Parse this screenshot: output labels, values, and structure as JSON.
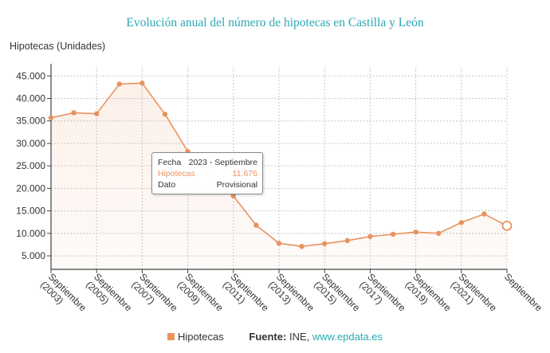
{
  "title": "Evolución anual del número de hipotecas en Castilla y León",
  "colors": {
    "series": "#e8935f",
    "title": "#2aa9b4",
    "source_link": "#2aa9b4"
  },
  "chart_data": {
    "type": "area",
    "ylabel": "Hipotecas (Unidades)",
    "ylim": [
      2000,
      47000
    ],
    "yticks": [
      5000,
      10000,
      15000,
      20000,
      25000,
      30000,
      35000,
      40000,
      45000
    ],
    "ytick_labels": [
      "5.000",
      "10.000",
      "15.000",
      "20.000",
      "25.000",
      "30.000",
      "35.000",
      "40.000",
      "45.000"
    ],
    "x_labels": [
      "Septiembre (2003)",
      "Septiembre (2005)",
      "Septiembre (2007)",
      "Septiembre (2009)",
      "Septiembre (2011)",
      "Septiembre (2013)",
      "Septiembre (2015)",
      "Septiembre (2017)",
      "Septiembre (2019)",
      "Septiembre (2021)",
      "Septiembre"
    ],
    "x_years": [
      2003,
      2004,
      2005,
      2006,
      2007,
      2008,
      2009,
      2010,
      2011,
      2012,
      2013,
      2014,
      2015,
      2016,
      2017,
      2018,
      2019,
      2020,
      2021,
      2022,
      2023
    ],
    "grid": true,
    "series": [
      {
        "name": "Hipotecas",
        "values": [
          35700,
          36800,
          36600,
          43200,
          43400,
          36500,
          28200,
          22600,
          18300,
          11800,
          7800,
          7100,
          7700,
          8400,
          9300,
          9800,
          10300,
          10000,
          12400,
          14300,
          11676
        ]
      }
    ],
    "tooltip": {
      "rows": [
        {
          "label": "Fecha",
          "value": "2023 - Septiembre"
        },
        {
          "label": "Hipotecas",
          "value": "11.676"
        },
        {
          "label": "Dato",
          "value": "Provisional"
        }
      ],
      "highlight_index": 20
    },
    "legend": {
      "position": "bottom",
      "label": "Hipotecas"
    }
  },
  "source": {
    "label": "Fuente:",
    "text": "INE,",
    "link": "www.epdata.es"
  }
}
